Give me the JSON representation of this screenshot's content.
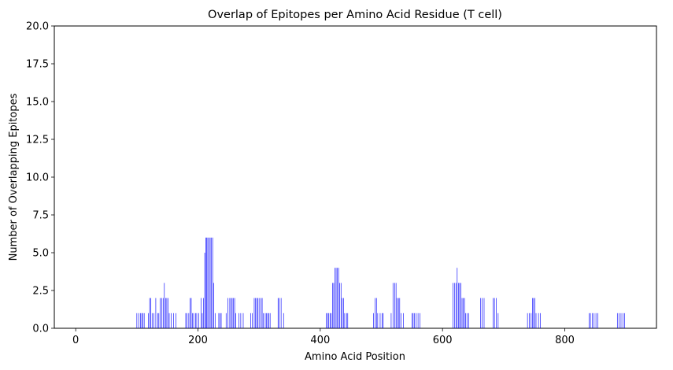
{
  "chart_data": {
    "type": "bar",
    "title": "Overlap of Epitopes per Amino Acid Residue (T cell)",
    "xlabel": "Amino Acid Position",
    "ylabel": "Number of Overlapping Epitopes",
    "xlim": [
      -35,
      950
    ],
    "ylim": [
      0,
      20
    ],
    "xticks": [
      0,
      200,
      400,
      600,
      800
    ],
    "yticks": [
      0.0,
      2.5,
      5.0,
      7.5,
      10.0,
      12.5,
      15.0,
      17.5,
      20.0
    ],
    "bar_color": "#0000ff",
    "grid": false,
    "legend": false,
    "series": [
      {
        "x": [
          100,
          103,
          106,
          108,
          110,
          112,
          119,
          121,
          123,
          125,
          128,
          131,
          134,
          136,
          138,
          141,
          143,
          145,
          147,
          149,
          151,
          153,
          156,
          160,
          164,
          180,
          182,
          185,
          187,
          189,
          191,
          193,
          196,
          198,
          201,
          205,
          207,
          209,
          211,
          213,
          214,
          216,
          218,
          220,
          222,
          224,
          226,
          228,
          234,
          236,
          238,
          246,
          249,
          252,
          254,
          256,
          258,
          260,
          262,
          267,
          270,
          274,
          286,
          289,
          292,
          294,
          296,
          298,
          300,
          303,
          305,
          307,
          310,
          312,
          314,
          316,
          318,
          331,
          333,
          336,
          340,
          410,
          412,
          414,
          416,
          418,
          420,
          422,
          424,
          426,
          428,
          430,
          432,
          434,
          436,
          438,
          440,
          443,
          445,
          487,
          490,
          492,
          494,
          498,
          501,
          503,
          516,
          519,
          522,
          524,
          526,
          528,
          530,
          532,
          536,
          550,
          552,
          554,
          557,
          560,
          563,
          617,
          620,
          622,
          624,
          626,
          628,
          630,
          632,
          634,
          636,
          638,
          640,
          643,
          662,
          665,
          668,
          683,
          685,
          688,
          691,
          739,
          742,
          745,
          747,
          749,
          751,
          753,
          757,
          760,
          840,
          842,
          845,
          848,
          851,
          854,
          886,
          889,
          892,
          895,
          898
        ],
        "values": [
          1,
          1,
          1,
          1,
          1,
          1,
          1,
          2,
          2,
          1,
          1,
          2,
          1,
          1,
          2,
          2,
          2,
          3,
          2,
          2,
          2,
          1,
          1,
          1,
          1,
          1,
          1,
          1,
          2,
          2,
          1,
          1,
          1,
          1,
          1,
          2,
          1,
          2,
          5,
          6,
          6,
          6,
          6,
          6,
          6,
          6,
          3,
          1,
          1,
          1,
          1,
          1,
          2,
          2,
          2,
          2,
          2,
          2,
          1,
          1,
          1,
          1,
          1,
          1,
          2,
          2,
          2,
          2,
          2,
          2,
          2,
          1,
          1,
          1,
          1,
          1,
          1,
          2,
          2,
          2,
          1,
          1,
          1,
          1,
          1,
          1,
          3,
          3,
          4,
          4,
          4,
          4,
          3,
          3,
          2,
          2,
          1,
          1,
          1,
          1,
          2,
          2,
          1,
          1,
          1,
          1,
          1,
          3,
          3,
          3,
          2,
          2,
          2,
          1,
          1,
          1,
          1,
          1,
          1,
          1,
          1,
          3,
          3,
          3,
          4,
          3,
          3,
          3,
          2,
          2,
          2,
          1,
          1,
          1,
          2,
          2,
          2,
          2,
          2,
          2,
          1,
          1,
          1,
          1,
          2,
          2,
          2,
          1,
          1,
          1,
          1,
          1,
          1,
          1,
          1,
          1,
          1,
          1,
          1,
          1,
          1
        ]
      }
    ]
  }
}
